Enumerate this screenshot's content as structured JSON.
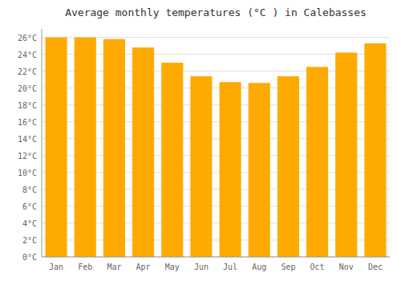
{
  "chart_data": {
    "type": "bar",
    "title": "Average monthly temperatures (°C ) in Calebasses",
    "categories": [
      "Jan",
      "Feb",
      "Mar",
      "Apr",
      "May",
      "Jun",
      "Jul",
      "Aug",
      "Sep",
      "Oct",
      "Nov",
      "Dec"
    ],
    "values": [
      26.0,
      26.0,
      25.8,
      24.8,
      23.0,
      21.4,
      20.7,
      20.6,
      21.4,
      22.5,
      24.2,
      25.3
    ],
    "color": "#FFAA00",
    "ylim": [
      0,
      27
    ],
    "yticks": [
      {
        "value": 0,
        "label": "0°C"
      },
      {
        "value": 2,
        "label": "2°C"
      },
      {
        "value": 4,
        "label": "4°C"
      },
      {
        "value": 6,
        "label": "6°C"
      },
      {
        "value": 8,
        "label": "8°C"
      },
      {
        "value": 10,
        "label": "10°C"
      },
      {
        "value": 12,
        "label": "12°C"
      },
      {
        "value": 14,
        "label": "14°C"
      },
      {
        "value": 16,
        "label": "16°C"
      },
      {
        "value": 18,
        "label": "18°C"
      },
      {
        "value": 20,
        "label": "20°C"
      },
      {
        "value": 22,
        "label": "22°C"
      },
      {
        "value": 24,
        "label": "24°C"
      },
      {
        "value": 26,
        "label": "26°C"
      }
    ],
    "grid": true
  }
}
